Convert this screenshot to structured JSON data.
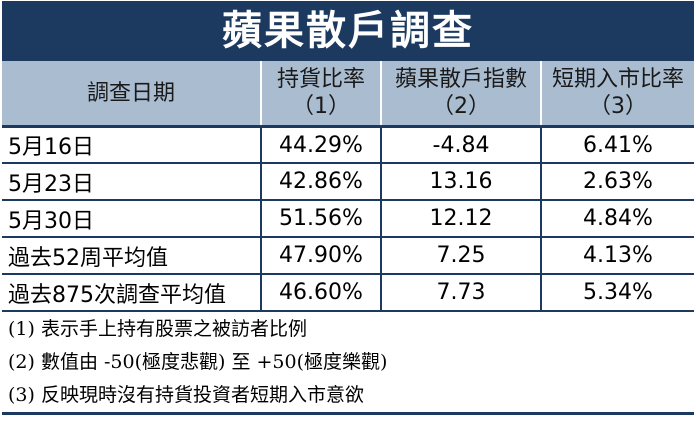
{
  "title": "蘋果散戶調查",
  "headers": [
    {
      "line1": "調查日期",
      "line2": ""
    },
    {
      "line1": "持貨比率",
      "line2": "（1）"
    },
    {
      "line1": "蘋果散戶指數",
      "line2": "（2）"
    },
    {
      "line1": "短期入市比率",
      "line2": "（3）"
    }
  ],
  "rows": [
    {
      "date": "5月16日",
      "holding": "44.29%",
      "index": "-4.84",
      "short_term": "6.41%"
    },
    {
      "date": "5月23日",
      "holding": "42.86%",
      "index": "13.16",
      "short_term": "2.63%"
    },
    {
      "date": "5月30日",
      "holding": "51.56%",
      "index": "12.12",
      "short_term": "4.84%"
    },
    {
      "date": "過去52周平均值",
      "holding": "47.90%",
      "index": "7.25",
      "short_term": "4.13%"
    },
    {
      "date": "過去875次調查平均值",
      "holding": "46.60%",
      "index": "7.73",
      "short_term": "5.34%"
    }
  ],
  "notes": [
    "(1) 表示手上持有股票之被訪者比例",
    "(2) 數值由 -50(極度悲觀) 至 +50(極度樂觀)",
    "(3) 反映現時沒有持貨投資者短期入市意欲"
  ],
  "colors": {
    "title_bg": "#1c3a5f",
    "header_bg": "#aabcd0"
  }
}
